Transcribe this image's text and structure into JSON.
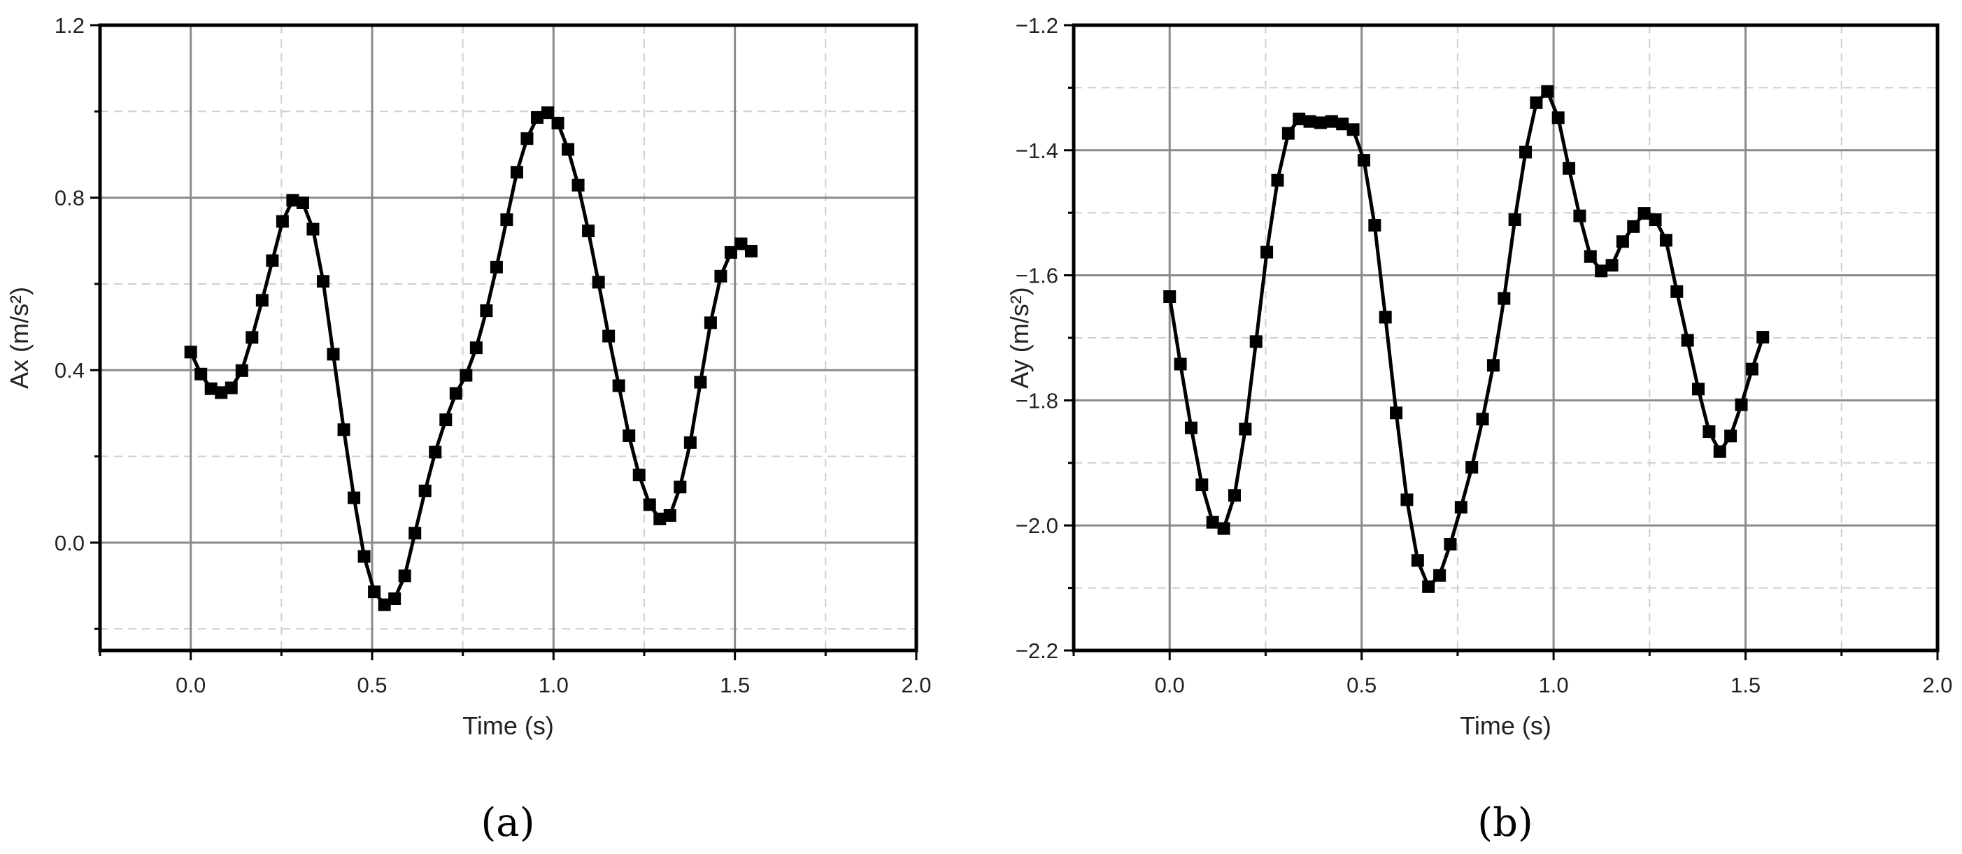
{
  "chart_data": [
    {
      "type": "line",
      "panel_label": "(a)",
      "xlabel": "Time (s)",
      "ylabel": "Ax (m/s²)",
      "xlim": [
        -0.25,
        2.0
      ],
      "ylim": [
        -0.25,
        1.2
      ],
      "xticks": [
        "0.0",
        "0.5",
        "1.0",
        "1.5",
        "2.0"
      ],
      "xtick_values": [
        0,
        0.5,
        1.0,
        1.5,
        2.0
      ],
      "yticks": [
        "0.0",
        "0.4",
        "0.8",
        "1.2"
      ],
      "ytick_values": [
        0,
        0.4,
        0.8,
        1.2
      ],
      "grid": true,
      "marker": "square",
      "color": "#000000",
      "x": [
        0,
        0.028,
        0.056,
        0.084,
        0.112,
        0.141,
        0.169,
        0.197,
        0.225,
        0.253,
        0.281,
        0.309,
        0.337,
        0.365,
        0.393,
        0.422,
        0.45,
        0.478,
        0.506,
        0.534,
        0.562,
        0.59,
        0.618,
        0.646,
        0.674,
        0.703,
        0.731,
        0.759,
        0.787,
        0.815,
        0.843,
        0.871,
        0.899,
        0.927,
        0.955,
        0.984,
        1.012,
        1.04,
        1.068,
        1.096,
        1.124,
        1.152,
        1.18,
        1.208,
        1.236,
        1.265,
        1.293,
        1.321,
        1.349,
        1.377,
        1.405,
        1.433,
        1.461,
        1.489,
        1.517,
        1.545
      ],
      "y": [
        0.442,
        0.391,
        0.357,
        0.348,
        0.359,
        0.399,
        0.476,
        0.562,
        0.654,
        0.745,
        0.794,
        0.788,
        0.727,
        0.606,
        0.437,
        0.262,
        0.104,
        -0.032,
        -0.114,
        -0.144,
        -0.13,
        -0.077,
        0.022,
        0.12,
        0.21,
        0.285,
        0.346,
        0.388,
        0.452,
        0.538,
        0.639,
        0.749,
        0.859,
        0.937,
        0.986,
        0.997,
        0.973,
        0.912,
        0.829,
        0.723,
        0.604,
        0.479,
        0.364,
        0.248,
        0.157,
        0.088,
        0.055,
        0.063,
        0.129,
        0.232,
        0.372,
        0.51,
        0.618,
        0.673,
        0.693,
        0.676
      ]
    },
    {
      "type": "line",
      "panel_label": "(b)",
      "xlabel": "Time (s)",
      "ylabel": "Ay (m/s²)",
      "xlim": [
        -0.25,
        2.0
      ],
      "ylim": [
        -2.2,
        -1.2
      ],
      "xticks": [
        "0.0",
        "0.5",
        "1.0",
        "1.5",
        "2.0"
      ],
      "xtick_values": [
        0,
        0.5,
        1.0,
        1.5,
        2.0
      ],
      "yticks": [
        "−2.2",
        "−2.0",
        "−1.8",
        "−1.6",
        "−1.4",
        "−1.2"
      ],
      "ytick_values": [
        -2.2,
        -2.0,
        -1.8,
        -1.6,
        -1.4,
        -1.2
      ],
      "grid": true,
      "marker": "square",
      "color": "#000000",
      "x": [
        0,
        0.028,
        0.056,
        0.084,
        0.112,
        0.141,
        0.169,
        0.197,
        0.225,
        0.253,
        0.281,
        0.309,
        0.337,
        0.365,
        0.393,
        0.422,
        0.45,
        0.478,
        0.506,
        0.534,
        0.562,
        0.59,
        0.618,
        0.646,
        0.674,
        0.703,
        0.731,
        0.759,
        0.787,
        0.815,
        0.843,
        0.871,
        0.899,
        0.927,
        0.955,
        0.984,
        1.012,
        1.04,
        1.068,
        1.096,
        1.124,
        1.152,
        1.18,
        1.208,
        1.236,
        1.265,
        1.293,
        1.321,
        1.349,
        1.377,
        1.405,
        1.433,
        1.461,
        1.489,
        1.517,
        1.545
      ],
      "y": [
        -1.634,
        -1.742,
        -1.844,
        -1.935,
        -1.995,
        -2.005,
        -1.952,
        -1.846,
        -1.706,
        -1.563,
        -1.448,
        -1.373,
        -1.35,
        -1.354,
        -1.356,
        -1.354,
        -1.358,
        -1.367,
        -1.416,
        -1.52,
        -1.667,
        -1.82,
        -1.959,
        -2.056,
        -2.098,
        -2.08,
        -2.03,
        -1.971,
        -1.907,
        -1.83,
        -1.744,
        -1.637,
        -1.511,
        -1.403,
        -1.324,
        -1.306,
        -1.348,
        -1.429,
        -1.505,
        -1.57,
        -1.593,
        -1.584,
        -1.546,
        -1.522,
        -1.501,
        -1.511,
        -1.544,
        -1.626,
        -1.704,
        -1.782,
        -1.85,
        -1.882,
        -1.857,
        -1.807,
        -1.75,
        -1.699
      ]
    }
  ]
}
